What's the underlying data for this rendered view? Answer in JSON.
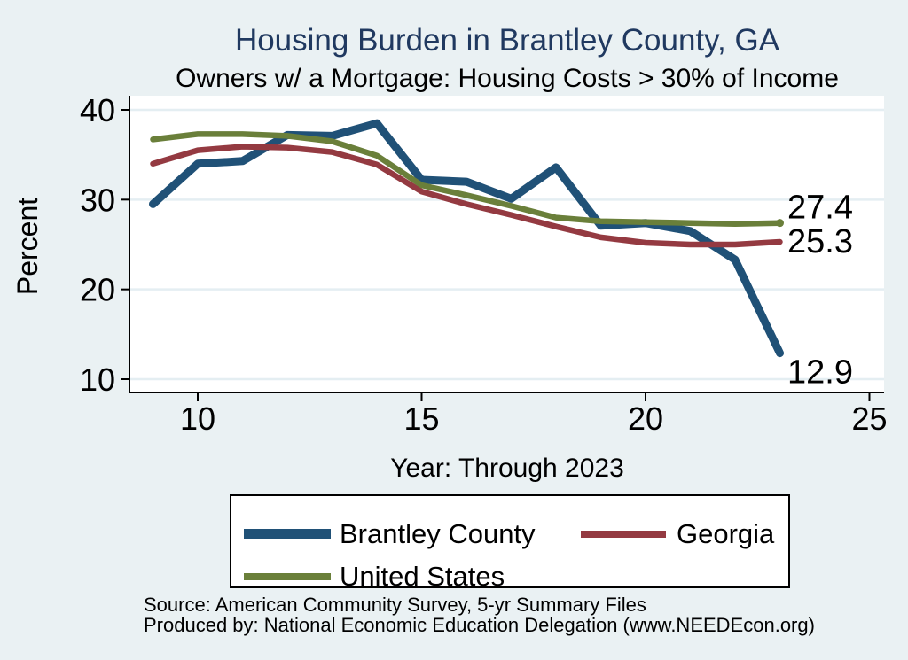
{
  "page": {
    "background_color": "#eaf1f3",
    "plot_background_color": "#ffffff",
    "gridline_color": "#e4eef2",
    "title_color": "#203960"
  },
  "chart_data": {
    "type": "line",
    "title": "Housing Burden in Brantley County, GA",
    "subtitle": "Owners w/ a Mortgage: Housing Costs > 30% of Income",
    "ylabel": "Percent",
    "xlabel": "Year: Through 2023",
    "grid": true,
    "legend_position": "bottom",
    "ylim": [
      10,
      40
    ],
    "yticks": [
      40,
      30,
      20,
      10
    ],
    "ytick_labels": [
      "40",
      "30",
      "20",
      "10"
    ],
    "xtick_years": [
      2010,
      2015,
      2020,
      2025
    ],
    "xtick_labels": [
      "10",
      "15",
      "20",
      "25"
    ],
    "x": [
      2009,
      2010,
      2011,
      2012,
      2013,
      2014,
      2015,
      2016,
      2017,
      2018,
      2019,
      2020,
      2021,
      2022,
      2023
    ],
    "series": [
      {
        "name": "Brantley County",
        "color": "#205177",
        "width": 9,
        "end_label": "12.9",
        "end_marker": false,
        "values": [
          29.5,
          34.0,
          34.3,
          37.2,
          37.1,
          38.5,
          32.2,
          32.0,
          30.1,
          33.6,
          27.1,
          27.4,
          26.5,
          23.3,
          12.9
        ]
      },
      {
        "name": "Georgia",
        "color": "#943a41",
        "width": 6.5,
        "end_label": "25.3",
        "end_marker": false,
        "values": [
          34.0,
          35.5,
          35.9,
          35.8,
          35.3,
          33.9,
          30.9,
          29.5,
          28.3,
          27.0,
          25.8,
          25.2,
          25.0,
          25.0,
          25.3
        ]
      },
      {
        "name": "United States",
        "color": "#6a7f3a",
        "width": 6.5,
        "end_label": "27.4",
        "end_marker": true,
        "values": [
          36.7,
          37.3,
          37.3,
          37.1,
          36.5,
          34.9,
          31.6,
          30.5,
          29.3,
          28.0,
          27.6,
          27.5,
          27.4,
          27.3,
          27.4
        ]
      }
    ]
  },
  "footer": {
    "line1": "Source: American Community Survey, 5-yr Summary Files",
    "line2": "Produced by: National Economic Education Delegation (www.NEEDEcon.org)"
  }
}
